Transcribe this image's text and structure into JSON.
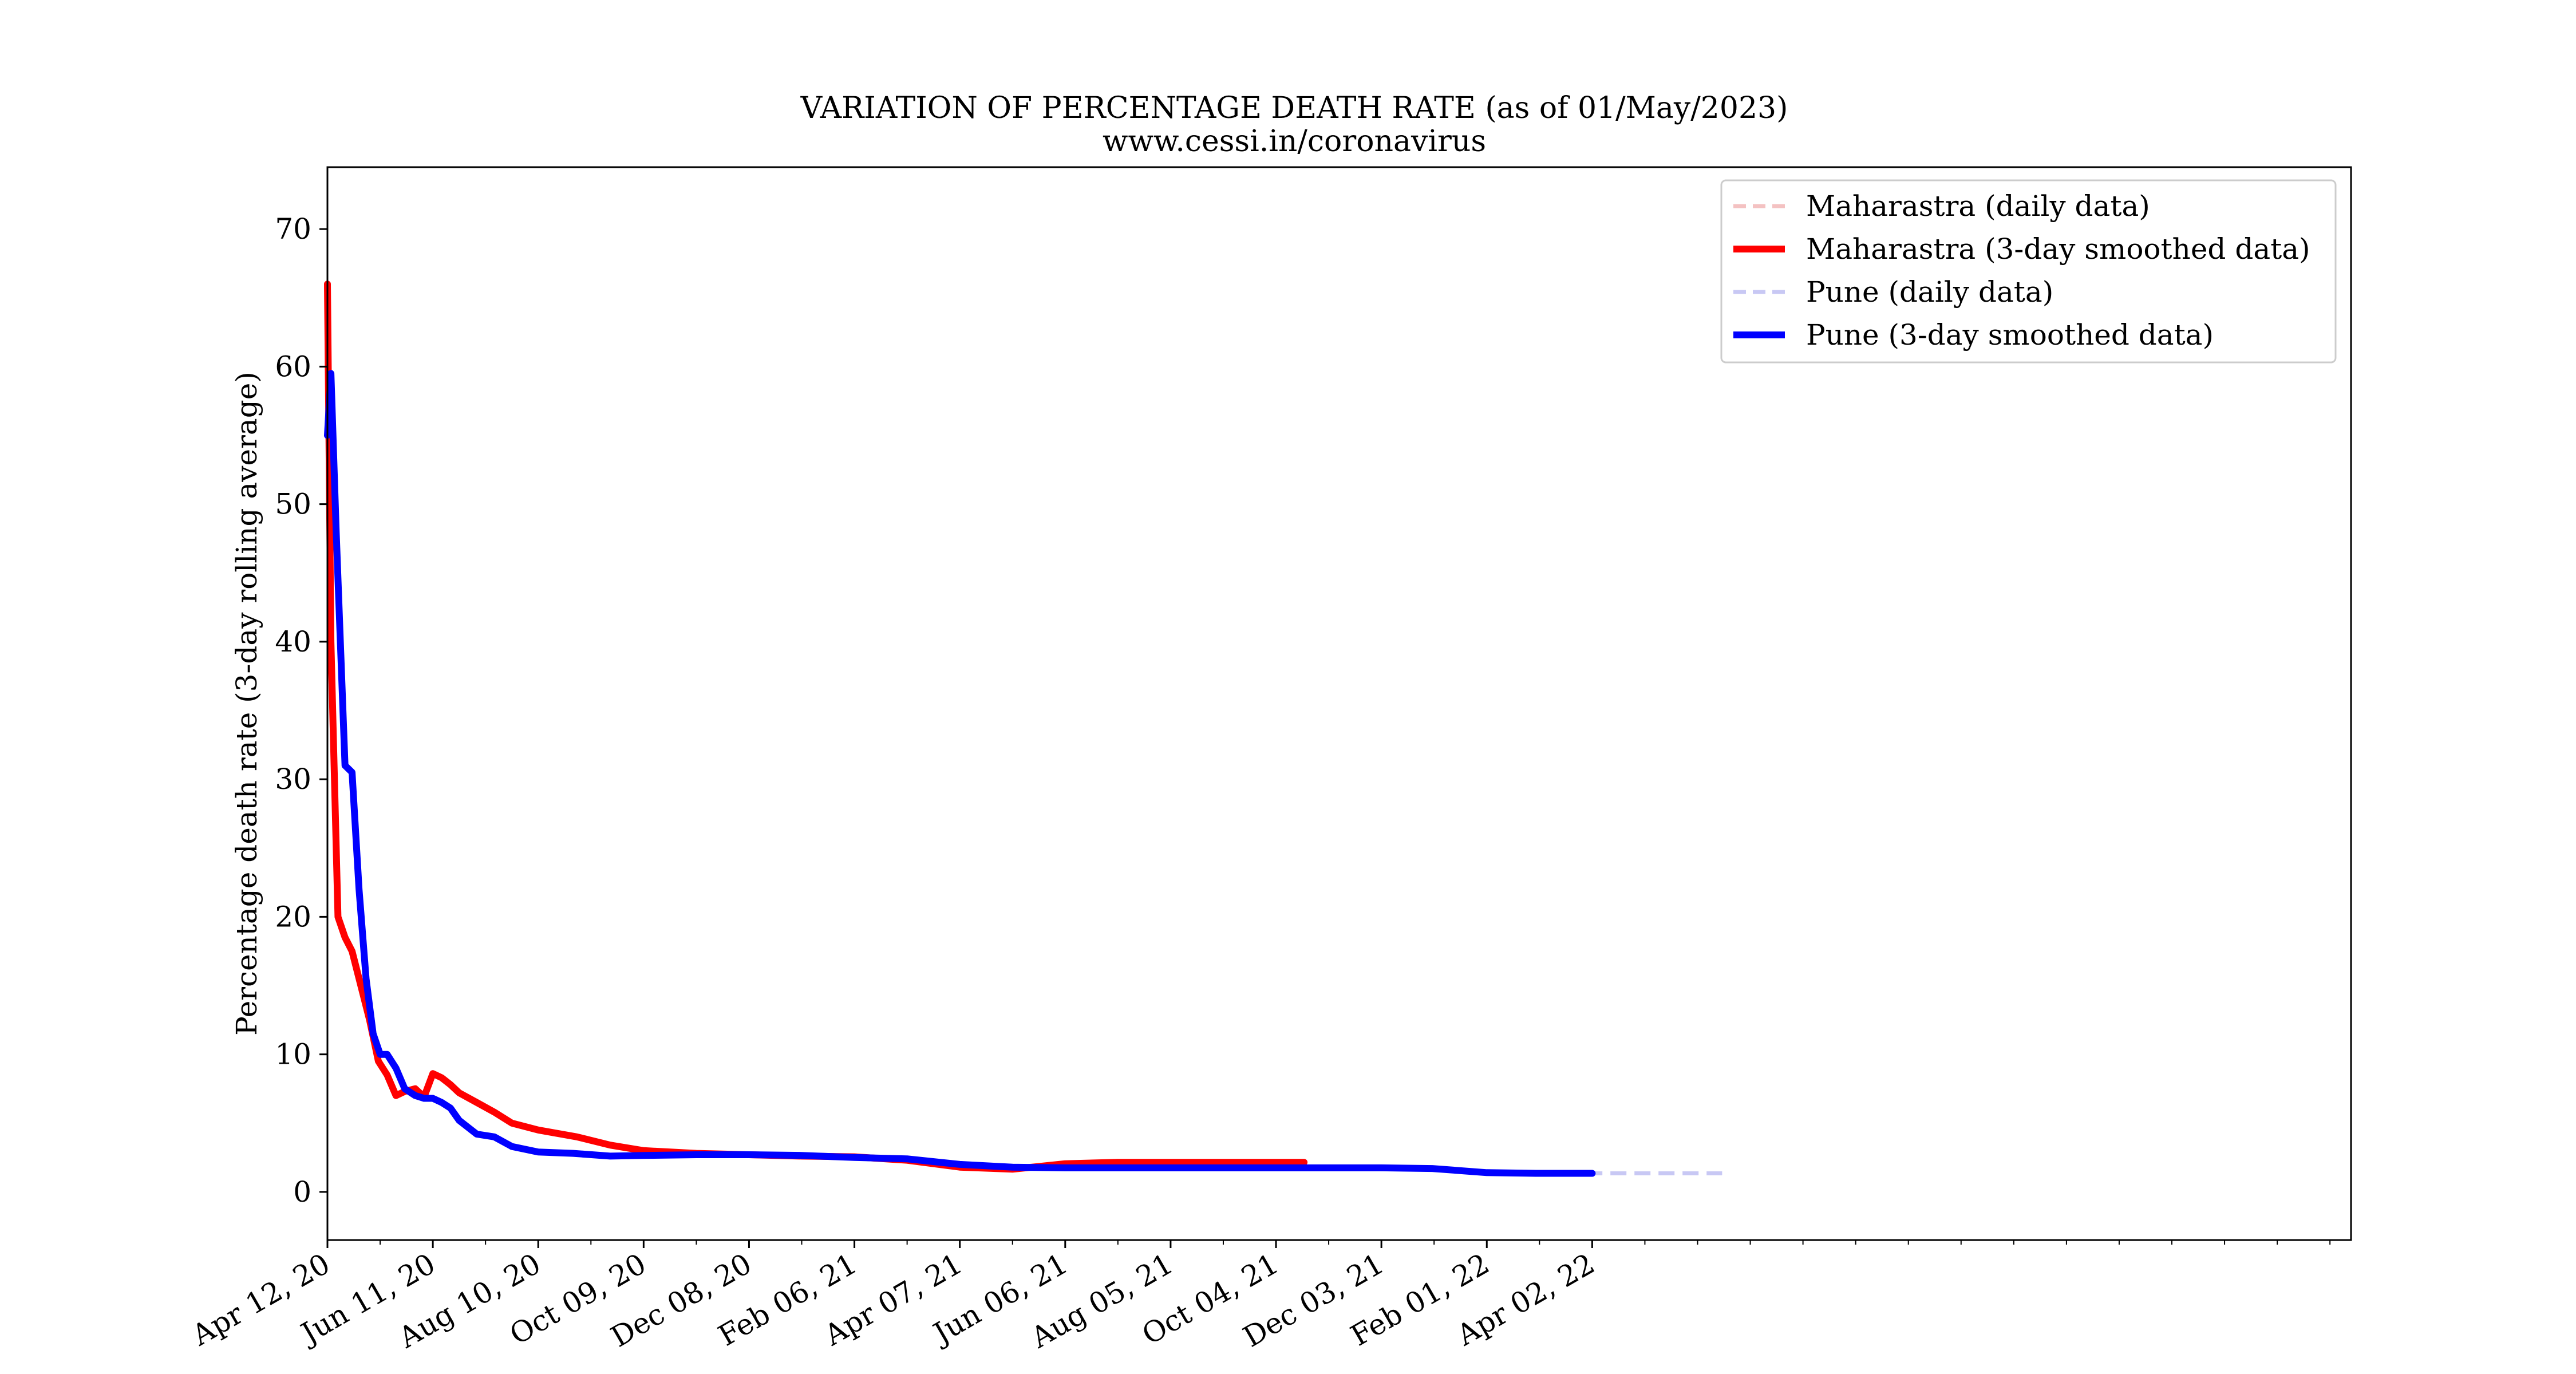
{
  "chart_data": {
    "type": "line",
    "title": "VARIATION OF PERCENTAGE DEATH RATE (as of 01/May/2023)",
    "subtitle": "www.cessi.in/coronavirus",
    "xlabel": "",
    "ylabel": "Percentage death rate (3-day rolling average)",
    "x_type": "date",
    "xlim": [
      "2020-04-12",
      "2023-06-08"
    ],
    "ylim": [
      -3.5,
      74.5
    ],
    "x_ticks": [
      "2020-04-12",
      "2020-06-11",
      "2020-08-10",
      "2020-10-09",
      "2020-12-08",
      "2021-02-06",
      "2021-04-07",
      "2021-06-06",
      "2021-08-05",
      "2021-10-04",
      "2021-12-03",
      "2022-02-01",
      "2022-04-02"
    ],
    "x_tick_labels": [
      "Apr 12, 20",
      "Jun 11, 20",
      "Aug 10, 20",
      "Oct 09, 20",
      "Dec 08, 20",
      "Feb 06, 21",
      "Apr 07, 21",
      "Jun 06, 21",
      "Aug 05, 21",
      "Oct 04, 21",
      "Dec 03, 21",
      "Feb 01, 22",
      "Apr 02, 22"
    ],
    "y_ticks": [
      0,
      10,
      20,
      30,
      40,
      50,
      60,
      70
    ],
    "y_tick_labels": [
      "0",
      "10",
      "20",
      "30",
      "40",
      "50",
      "60",
      "70"
    ],
    "grid": false,
    "legend_placement": "top-right",
    "legend": [
      "Maharastra (daily data)",
      "Maharastra (3-day smoothed data)",
      "Pune (daily data)",
      "Pune (3-day smoothed data)"
    ],
    "series": [
      {
        "name": "Maharastra (daily data)",
        "color": "#f4c2c2",
        "style": "dashed",
        "x": [
          "2020-04-12",
          "2020-04-14",
          "2020-04-18",
          "2020-04-22",
          "2020-04-26",
          "2020-05-01",
          "2020-05-06",
          "2020-05-11",
          "2020-05-16",
          "2020-05-21",
          "2020-05-26",
          "2020-06-01",
          "2020-06-06",
          "2020-06-11",
          "2020-06-16",
          "2020-06-21",
          "2020-06-26",
          "2020-07-06",
          "2020-07-16",
          "2020-07-26",
          "2020-08-10",
          "2020-09-01",
          "2020-09-20",
          "2020-10-09",
          "2020-11-08",
          "2020-12-08",
          "2021-01-07",
          "2021-02-06",
          "2021-03-08",
          "2021-04-07",
          "2021-05-07",
          "2021-06-06",
          "2021-07-06",
          "2021-08-05",
          "2021-09-04",
          "2021-10-04",
          "2021-10-20"
        ],
        "y": [
          66,
          40,
          20,
          18.5,
          17.5,
          15,
          12.5,
          9.5,
          8.5,
          7,
          7.3,
          7.5,
          6.9,
          8.6,
          8.3,
          7.8,
          7.2,
          6.5,
          5.8,
          5.0,
          4.5,
          4.0,
          3.4,
          3.0,
          2.8,
          2.7,
          2.6,
          2.55,
          2.3,
          1.8,
          1.65,
          2.05,
          2.15,
          2.15,
          2.15,
          2.15,
          2.15
        ]
      },
      {
        "name": "Maharastra (3-day smoothed data)",
        "color": "#ff0000",
        "style": "solid",
        "x": [
          "2020-04-12",
          "2020-04-14",
          "2020-04-18",
          "2020-04-22",
          "2020-04-26",
          "2020-05-01",
          "2020-05-06",
          "2020-05-11",
          "2020-05-16",
          "2020-05-21",
          "2020-05-26",
          "2020-06-01",
          "2020-06-06",
          "2020-06-11",
          "2020-06-16",
          "2020-06-21",
          "2020-06-26",
          "2020-07-06",
          "2020-07-16",
          "2020-07-26",
          "2020-08-10",
          "2020-09-01",
          "2020-09-20",
          "2020-10-09",
          "2020-11-08",
          "2020-12-08",
          "2021-01-07",
          "2021-02-06",
          "2021-03-08",
          "2021-04-07",
          "2021-05-07",
          "2021-06-06",
          "2021-07-06",
          "2021-08-05",
          "2021-09-04",
          "2021-10-04",
          "2021-10-20"
        ],
        "y": [
          66,
          40,
          20,
          18.5,
          17.5,
          15,
          12.5,
          9.5,
          8.5,
          7,
          7.3,
          7.5,
          6.9,
          8.6,
          8.3,
          7.8,
          7.2,
          6.5,
          5.8,
          5.0,
          4.5,
          4.0,
          3.4,
          3.0,
          2.8,
          2.7,
          2.6,
          2.55,
          2.3,
          1.8,
          1.65,
          2.05,
          2.15,
          2.15,
          2.15,
          2.15,
          2.15
        ]
      },
      {
        "name": "Pune (daily data)",
        "color": "#c8c8f4",
        "style": "dashed",
        "x": [
          "2020-04-12",
          "2020-04-14",
          "2020-04-17",
          "2020-04-22",
          "2020-04-26",
          "2020-04-30",
          "2020-05-04",
          "2020-05-08",
          "2020-05-12",
          "2020-05-16",
          "2020-05-21",
          "2020-05-26",
          "2020-06-01",
          "2020-06-06",
          "2020-06-11",
          "2020-06-16",
          "2020-06-21",
          "2020-06-26",
          "2020-07-06",
          "2020-07-16",
          "2020-07-26",
          "2020-08-10",
          "2020-08-30",
          "2020-09-20",
          "2020-10-09",
          "2020-11-08",
          "2020-12-08",
          "2021-01-07",
          "2021-02-06",
          "2021-03-08",
          "2021-04-07",
          "2021-05-07",
          "2021-06-06",
          "2021-07-06",
          "2021-08-05",
          "2021-09-04",
          "2021-10-04",
          "2021-11-01",
          "2021-11-15",
          "2021-12-03",
          "2022-01-01",
          "2022-02-01",
          "2022-03-01",
          "2022-04-02",
          "2022-06-15"
        ],
        "y": [
          55,
          59.5,
          48,
          31,
          30.5,
          22,
          15.5,
          11.5,
          10,
          10,
          9,
          7.5,
          7,
          6.8,
          6.8,
          6.5,
          6.1,
          5.2,
          4.2,
          4.0,
          3.3,
          2.9,
          2.8,
          2.6,
          2.65,
          2.7,
          2.7,
          2.65,
          2.5,
          2.4,
          2.0,
          1.8,
          1.75,
          1.75,
          1.75,
          1.75,
          1.75,
          1.75,
          1.75,
          1.75,
          1.7,
          1.4,
          1.35,
          1.35,
          1.35
        ]
      },
      {
        "name": "Pune (3-day smoothed data)",
        "color": "#0000ff",
        "style": "solid",
        "x": [
          "2020-04-12",
          "2020-04-14",
          "2020-04-17",
          "2020-04-22",
          "2020-04-26",
          "2020-04-30",
          "2020-05-04",
          "2020-05-08",
          "2020-05-12",
          "2020-05-16",
          "2020-05-21",
          "2020-05-26",
          "2020-06-01",
          "2020-06-06",
          "2020-06-11",
          "2020-06-16",
          "2020-06-21",
          "2020-06-26",
          "2020-07-06",
          "2020-07-16",
          "2020-07-26",
          "2020-08-10",
          "2020-08-30",
          "2020-09-20",
          "2020-10-09",
          "2020-11-08",
          "2020-12-08",
          "2021-01-07",
          "2021-02-06",
          "2021-03-08",
          "2021-04-07",
          "2021-05-07",
          "2021-06-06",
          "2021-07-06",
          "2021-08-05",
          "2021-09-04",
          "2021-10-04",
          "2021-11-01",
          "2021-11-15",
          "2021-12-03",
          "2022-01-01",
          "2022-02-01",
          "2022-03-01",
          "2022-04-02"
        ],
        "y": [
          55,
          59.5,
          48,
          31,
          30.5,
          22,
          15.5,
          11.5,
          10,
          10,
          9,
          7.5,
          7,
          6.8,
          6.8,
          6.5,
          6.1,
          5.2,
          4.2,
          4.0,
          3.3,
          2.9,
          2.8,
          2.6,
          2.65,
          2.7,
          2.7,
          2.65,
          2.5,
          2.4,
          2.0,
          1.8,
          1.75,
          1.75,
          1.75,
          1.75,
          1.75,
          1.75,
          1.75,
          1.75,
          1.7,
          1.4,
          1.35,
          1.35
        ]
      }
    ]
  }
}
